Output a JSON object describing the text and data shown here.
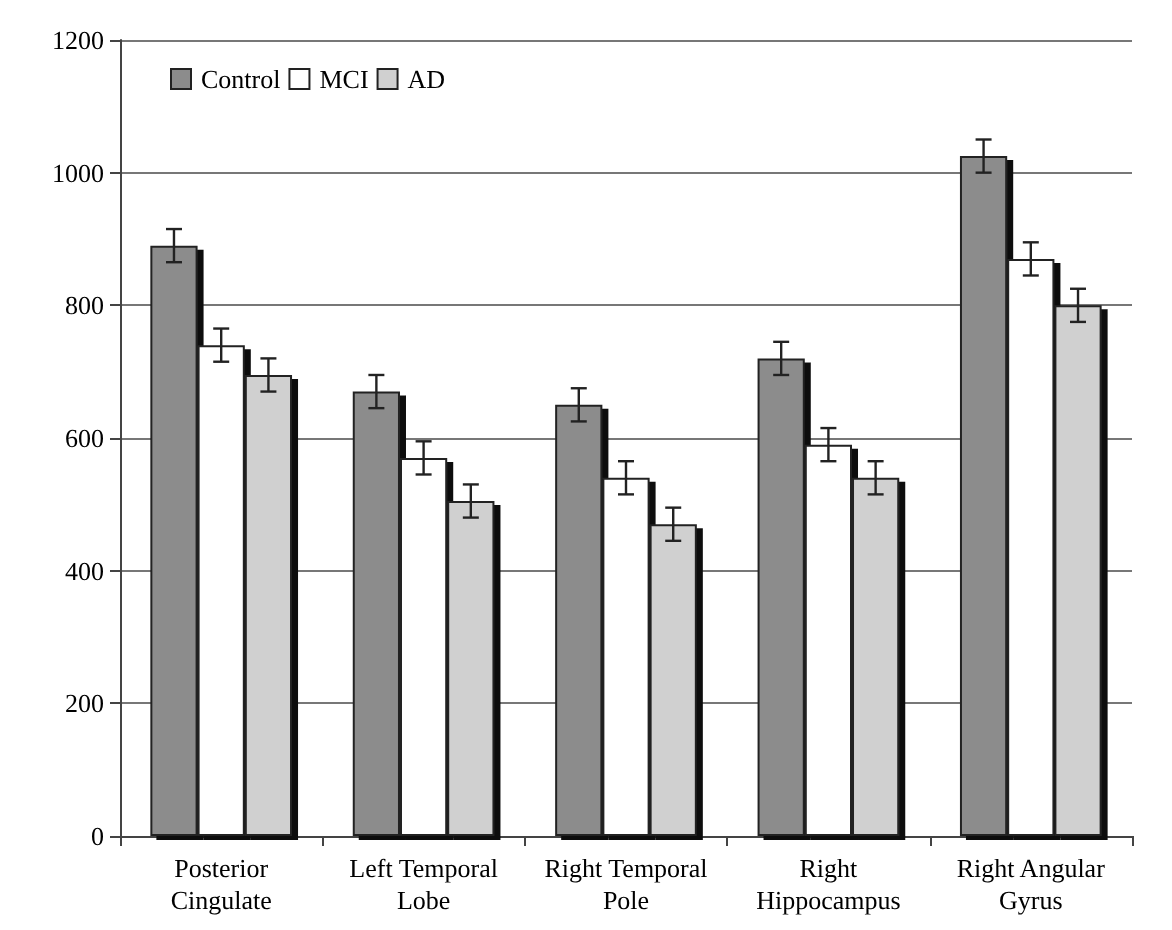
{
  "chart_data": {
    "type": "bar",
    "categories": [
      "Posterior\nCingulate",
      "Left Temporal\nLobe",
      "Right Temporal\nPole",
      "Right\nHippocampus",
      "Right Angular\nGyrus"
    ],
    "series": [
      {
        "name": "Control",
        "color": "#8c8c8c",
        "values": [
          890,
          670,
          650,
          720,
          1025
        ],
        "errors": [
          25,
          25,
          25,
          25,
          25
        ]
      },
      {
        "name": "MCI",
        "color": "#ffffff",
        "values": [
          740,
          570,
          540,
          590,
          870
        ],
        "errors": [
          25,
          25,
          25,
          25,
          25
        ]
      },
      {
        "name": "AD",
        "color": "#d0d0d0",
        "values": [
          695,
          505,
          470,
          540,
          800
        ],
        "errors": [
          25,
          25,
          25,
          25,
          25
        ]
      }
    ],
    "ylim": [
      0,
      1200
    ],
    "yticks": [
      0,
      200,
      400,
      600,
      800,
      1000,
      1200
    ],
    "grid": "y",
    "legend": "top left"
  }
}
